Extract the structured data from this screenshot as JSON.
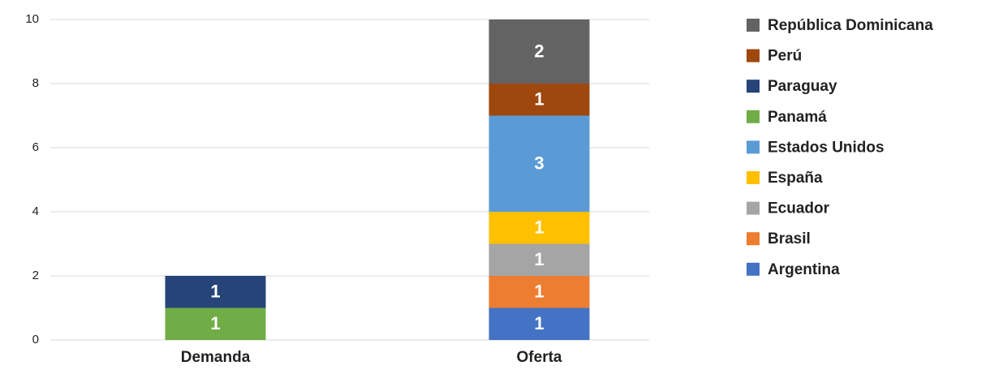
{
  "chart_data": {
    "type": "stacked_bar",
    "categories": [
      "Demanda",
      "Oferta"
    ],
    "series": [
      {
        "name": "Argentina",
        "color": "#4472c4",
        "values": [
          null,
          1
        ]
      },
      {
        "name": "Brasil",
        "color": "#ed7d31",
        "values": [
          null,
          1
        ]
      },
      {
        "name": "Ecuador",
        "color": "#a5a5a5",
        "values": [
          null,
          1
        ]
      },
      {
        "name": "España",
        "color": "#ffc000",
        "values": [
          null,
          1
        ]
      },
      {
        "name": "Estados Unidos",
        "color": "#5b9bd5",
        "values": [
          null,
          3
        ]
      },
      {
        "name": "Panamá",
        "color": "#70ad47",
        "values": [
          1,
          null
        ]
      },
      {
        "name": "Paraguay",
        "color": "#264478",
        "values": [
          1,
          null
        ]
      },
      {
        "name": "Perú",
        "color": "#9e480e",
        "values": [
          null,
          1
        ]
      },
      {
        "name": "República Dominicana",
        "color": "#636363",
        "values": [
          null,
          2
        ]
      }
    ],
    "ylim": [
      0,
      10
    ],
    "yticks": [
      0,
      2,
      4,
      6,
      8,
      10
    ],
    "grid": true,
    "legend": "right"
  }
}
